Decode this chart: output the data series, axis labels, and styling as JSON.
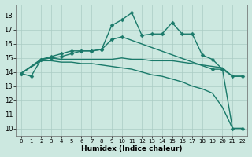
{
  "xlabel": "Humidex (Indice chaleur)",
  "xlim": [
    -0.5,
    22.5
  ],
  "ylim": [
    9.5,
    18.8
  ],
  "yticks": [
    10,
    11,
    12,
    13,
    14,
    15,
    16,
    17,
    18
  ],
  "xticks": [
    0,
    1,
    2,
    3,
    4,
    5,
    6,
    7,
    8,
    9,
    10,
    11,
    12,
    13,
    14,
    15,
    16,
    17,
    18,
    19,
    20,
    21,
    22
  ],
  "bg_color": "#cce8e0",
  "line_color": "#1a7a6a",
  "grid_color": "#aaccc4",
  "lines": [
    {
      "x": [
        0,
        2,
        3,
        4,
        5,
        6,
        7,
        8,
        9,
        10,
        11,
        12,
        13,
        14,
        15,
        16,
        17,
        18,
        19,
        20,
        21,
        22
      ],
      "y": [
        13.9,
        14.9,
        15.1,
        15.3,
        15.5,
        15.5,
        15.5,
        15.6,
        17.3,
        17.7,
        18.2,
        16.6,
        16.7,
        16.7,
        17.5,
        16.7,
        16.7,
        15.2,
        14.9,
        14.2,
        10.0,
        10.0
      ],
      "marker": true,
      "markersize": 2.5,
      "linewidth": 1.0
    },
    {
      "x": [
        0,
        1,
        2,
        3,
        4,
        5,
        6,
        7,
        8,
        9,
        10,
        19,
        20,
        21,
        22
      ],
      "y": [
        13.9,
        13.7,
        14.9,
        15.0,
        15.1,
        15.3,
        15.5,
        15.5,
        15.6,
        16.3,
        16.5,
        14.2,
        14.2,
        13.7,
        13.7
      ],
      "marker": true,
      "markersize": 2.5,
      "linewidth": 1.0
    },
    {
      "x": [
        0,
        2,
        3,
        4,
        5,
        6,
        7,
        8,
        9,
        10,
        11,
        12,
        13,
        14,
        15,
        16,
        17,
        18,
        19,
        20,
        21,
        22
      ],
      "y": [
        13.9,
        14.9,
        15.0,
        14.9,
        14.9,
        14.9,
        14.9,
        14.9,
        14.9,
        15.0,
        14.9,
        14.9,
        14.8,
        14.8,
        14.8,
        14.7,
        14.6,
        14.5,
        14.4,
        14.3,
        13.7,
        13.7
      ],
      "marker": false,
      "markersize": 0,
      "linewidth": 1.0
    },
    {
      "x": [
        0,
        2,
        3,
        4,
        5,
        6,
        7,
        8,
        9,
        10,
        11,
        12,
        13,
        14,
        15,
        16,
        17,
        18,
        19,
        20,
        21,
        22
      ],
      "y": [
        13.9,
        14.8,
        14.8,
        14.7,
        14.7,
        14.6,
        14.6,
        14.5,
        14.4,
        14.3,
        14.2,
        14.0,
        13.8,
        13.7,
        13.5,
        13.3,
        13.0,
        12.8,
        12.5,
        11.5,
        10.0,
        10.0
      ],
      "marker": false,
      "markersize": 0,
      "linewidth": 1.0
    }
  ]
}
